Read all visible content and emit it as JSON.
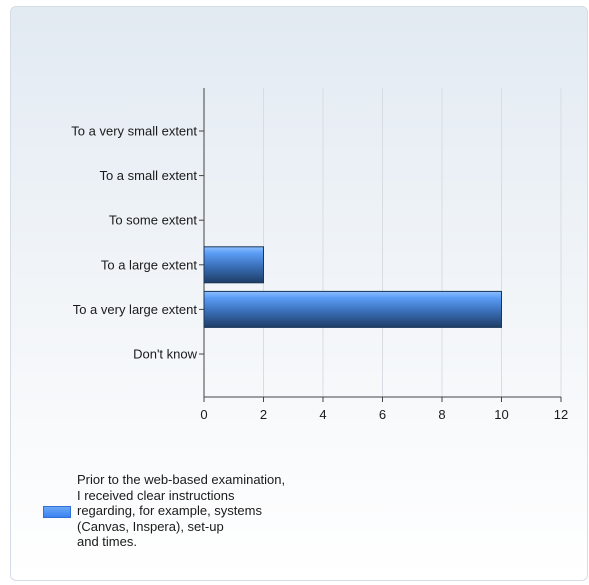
{
  "chart_data": {
    "type": "bar",
    "orientation": "horizontal",
    "categories": [
      "To a very small extent",
      "To a small extent",
      "To some extent",
      "To a large extent",
      "To a very large extent",
      "Don't know"
    ],
    "series": [
      {
        "name": "Prior to the web-based examination,\nI received clear instructions\nregarding, for example, systems\n(Canvas, Inspera), set-up\nand times.",
        "values": [
          0,
          0,
          0,
          2,
          10,
          0
        ]
      }
    ],
    "xticks": [
      "0",
      "2",
      "4",
      "6",
      "8",
      "10",
      "12"
    ],
    "xlim": [
      0,
      12
    ],
    "grid": true,
    "legend_position": "bottom-left",
    "colors": {
      "bar_top": "#5b9cf6",
      "bar_bottom": "#1e3d66",
      "grid": "#d9dde3",
      "axis": "#444444"
    }
  }
}
